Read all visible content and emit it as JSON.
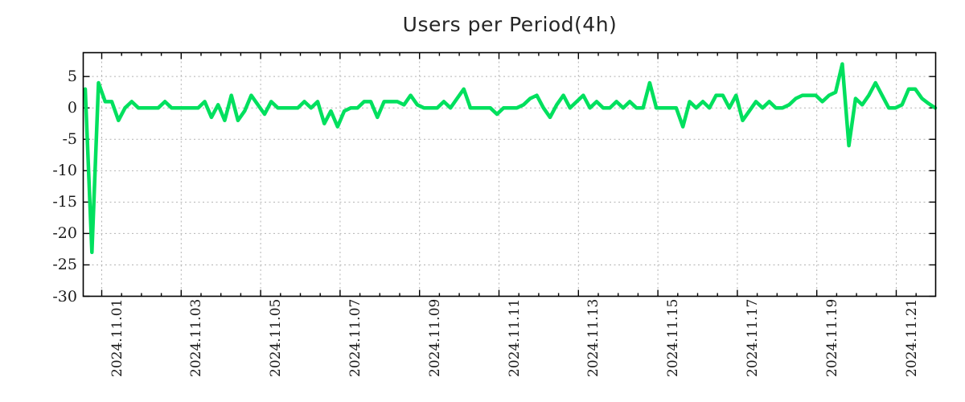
{
  "chart_data": {
    "type": "line",
    "title": "Users per Period(4h)",
    "period_hours": 4,
    "grid": true,
    "legend": "none",
    "line_color": "#00e05e",
    "grid_color": "#b3b3b3",
    "axis_color": "#000000",
    "text_color": "#1a1a1a",
    "ylim": [
      -30,
      8.8
    ],
    "y_ticks": [
      5,
      0,
      -5,
      -10,
      -15,
      -20,
      -25,
      -30
    ],
    "y_tick_labels": [
      "5",
      "0",
      "-5",
      "-10",
      "-15",
      "-20",
      "-25",
      "-30"
    ],
    "x_tick_labels": [
      "2024.11.01",
      "2024.11.03",
      "2024.11.05",
      "2024.11.07",
      "2024.11.09",
      "2024.11.11",
      "2024.11.13",
      "2024.11.15",
      "2024.11.17",
      "2024.11.19",
      "2024.11.21"
    ],
    "x_minor_tick_hours": 12,
    "values": [
      3,
      -23,
      4,
      1,
      1,
      -2,
      0,
      1,
      0,
      0,
      0,
      0,
      1,
      0,
      0,
      0,
      0,
      0,
      1,
      -1.5,
      0.5,
      -2,
      2,
      -2,
      -0.5,
      2,
      0.5,
      -1,
      1,
      0,
      0,
      0,
      0,
      1,
      0,
      1,
      -2.5,
      -0.5,
      -3,
      -0.5,
      0,
      0,
      1,
      1,
      -1.5,
      1,
      1,
      1,
      0.5,
      2,
      0.5,
      0,
      0,
      0,
      1,
      0,
      1.5,
      3,
      0,
      0,
      0,
      0,
      -1,
      0,
      0,
      0,
      0.5,
      1.5,
      2,
      0,
      -1.5,
      0.5,
      2,
      0,
      1,
      2,
      0,
      1,
      0,
      0,
      1,
      0,
      1,
      0,
      0,
      4,
      0,
      0,
      0,
      0,
      -3,
      1,
      0,
      1,
      0,
      2,
      2,
      0,
      2,
      -2,
      -0.5,
      1,
      0,
      1,
      0,
      0,
      0.5,
      1.5,
      2,
      2,
      2,
      1,
      2,
      2.5,
      7,
      -6,
      1.5,
      0.5,
      2,
      4,
      2,
      0,
      0,
      0.5,
      3,
      3,
      1.5,
      0.7,
      0
    ]
  }
}
